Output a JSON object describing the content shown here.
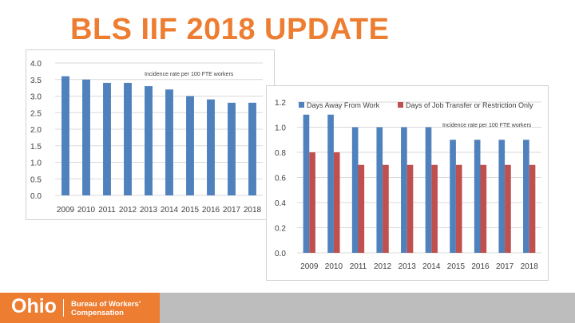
{
  "slide": {
    "title": "BLS IIF 2018 UPDATE"
  },
  "colors": {
    "title": "#ed7d31",
    "series_blue": "#4f81bd",
    "series_red": "#c0504d",
    "brand_orange": "#ed7d31",
    "footer_gray": "#bdbdbd"
  },
  "footer": {
    "logo_text": "Ohio",
    "org_line1": "Bureau of Workers'",
    "org_line2": "Compensation"
  },
  "chart_data": [
    {
      "type": "bar",
      "title": "",
      "annotation": "Incidence rate per 100 FTE workers",
      "categories": [
        "2009",
        "2010",
        "2011",
        "2012",
        "2013",
        "2014",
        "2015",
        "2016",
        "2017",
        "2018"
      ],
      "series": [
        {
          "values": [
            3.6,
            3.5,
            3.4,
            3.4,
            3.3,
            3.2,
            3.0,
            2.9,
            2.8,
            2.8
          ]
        }
      ],
      "ylim": [
        0,
        4
      ],
      "yticks": [
        "0.0",
        "0.5",
        "1.0",
        "1.5",
        "2.0",
        "2.5",
        "3.0",
        "3.5",
        "4.0"
      ],
      "grid": true,
      "legend": "none"
    },
    {
      "type": "bar",
      "title": "",
      "annotation": "Incidence rate per 100 FTE workers",
      "categories": [
        "2009",
        "2010",
        "2011",
        "2012",
        "2013",
        "2014",
        "2015",
        "2016",
        "2017",
        "2018"
      ],
      "series": [
        {
          "name": "Days Away From Work",
          "values": [
            1.1,
            1.1,
            1.0,
            1.0,
            1.0,
            1.0,
            0.9,
            0.9,
            0.9,
            0.9
          ]
        },
        {
          "name": "Days of Job Transfer or Restriction Only",
          "values": [
            0.8,
            0.8,
            0.7,
            0.7,
            0.7,
            0.7,
            0.7,
            0.7,
            0.7,
            0.7
          ]
        }
      ],
      "ylim": [
        0,
        1.2
      ],
      "yticks": [
        "0.0",
        "0.2",
        "0.4",
        "0.6",
        "0.8",
        "1.0",
        "1.2"
      ],
      "grid": true,
      "legend": "top"
    }
  ]
}
